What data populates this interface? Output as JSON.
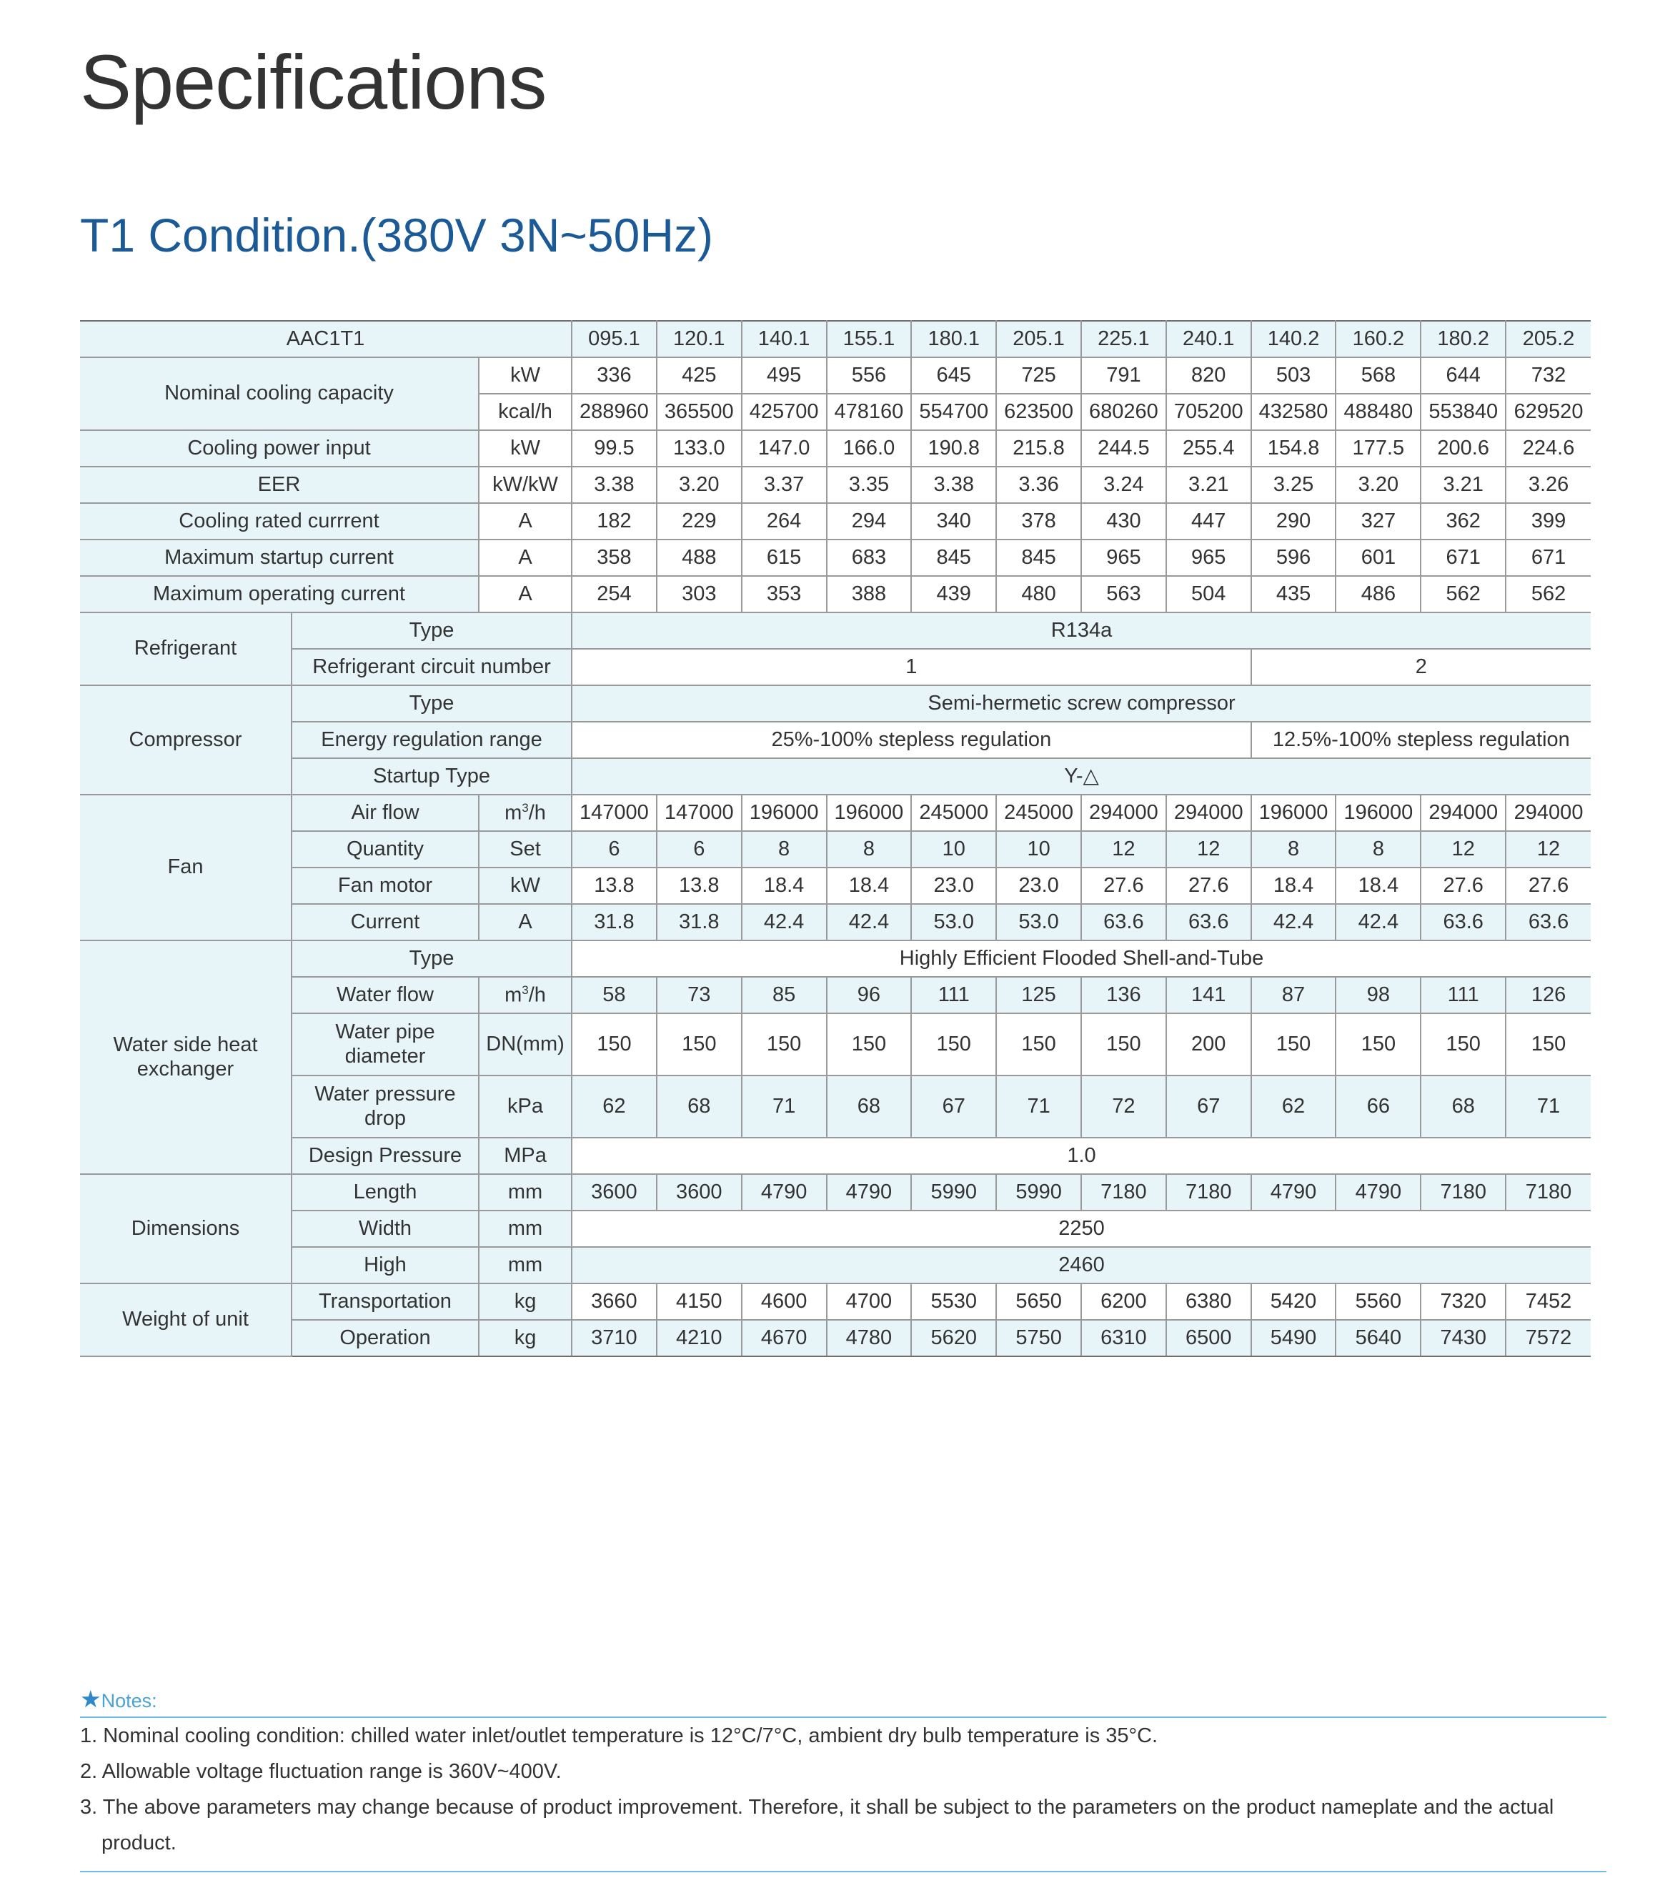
{
  "page": {
    "title": "Specifications",
    "subtitle": "T1 Condition.(380V 3N~50Hz)"
  },
  "table": {
    "header": {
      "label": "AAC1T1",
      "models": [
        "095.1",
        "120.1",
        "140.1",
        "155.1",
        "180.1",
        "205.1",
        "225.1",
        "240.1",
        "140.2",
        "160.2",
        "180.2",
        "205.2"
      ]
    },
    "nominal_cooling": {
      "label": "Nominal cooling capacity",
      "kw": {
        "unit": "kW",
        "values": [
          "336",
          "425",
          "495",
          "556",
          "645",
          "725",
          "791",
          "820",
          "503",
          "568",
          "644",
          "732"
        ]
      },
      "kcal": {
        "unit": "kcal/h",
        "values": [
          "288960",
          "365500",
          "425700",
          "478160",
          "554700",
          "623500",
          "680260",
          "705200",
          "432580",
          "488480",
          "553840",
          "629520"
        ]
      }
    },
    "power_input": {
      "label": "Cooling power input",
      "unit": "kW",
      "values": [
        "99.5",
        "133.0",
        "147.0",
        "166.0",
        "190.8",
        "215.8",
        "244.5",
        "255.4",
        "154.8",
        "177.5",
        "200.6",
        "224.6"
      ]
    },
    "eer": {
      "label": "EER",
      "unit": "kW/kW",
      "values": [
        "3.38",
        "3.20",
        "3.37",
        "3.35",
        "3.38",
        "3.36",
        "3.24",
        "3.21",
        "3.25",
        "3.20",
        "3.21",
        "3.26"
      ]
    },
    "rated_current": {
      "label": "Cooling rated currrent",
      "unit": "A",
      "values": [
        "182",
        "229",
        "264",
        "294",
        "340",
        "378",
        "430",
        "447",
        "290",
        "327",
        "362",
        "399"
      ]
    },
    "max_startup": {
      "label": "Maximum startup current",
      "unit": "A",
      "values": [
        "358",
        "488",
        "615",
        "683",
        "845",
        "845",
        "965",
        "965",
        "596",
        "601",
        "671",
        "671"
      ]
    },
    "max_operating": {
      "label": "Maximum operating current",
      "unit": "A",
      "values": [
        "254",
        "303",
        "353",
        "388",
        "439",
        "480",
        "563",
        "504",
        "435",
        "486",
        "562",
        "562"
      ]
    },
    "refrigerant": {
      "label": "Refrigerant",
      "type_label": "Type",
      "type_value": "R134a",
      "circuit_label": "Refrigerant circuit number",
      "circuit_a": "1",
      "circuit_b": "2"
    },
    "compressor": {
      "label": "Compressor",
      "type_label": "Type",
      "type_value": "Semi-hermetic screw compressor",
      "regulation_label": "Energy regulation range",
      "regulation_a": "25%-100% stepless regulation",
      "regulation_b": "12.5%-100% stepless regulation",
      "startup_label": "Startup Type",
      "startup_value": "Y-△"
    },
    "fan": {
      "label": "Fan",
      "air_flow": {
        "label": "Air flow",
        "unit_base": "m",
        "unit_sup": "3",
        "unit_tail": "/h",
        "values": [
          "147000",
          "147000",
          "196000",
          "196000",
          "245000",
          "245000",
          "294000",
          "294000",
          "196000",
          "196000",
          "294000",
          "294000"
        ]
      },
      "quantity": {
        "label": "Quantity",
        "unit": "Set",
        "values": [
          "6",
          "6",
          "8",
          "8",
          "10",
          "10",
          "12",
          "12",
          "8",
          "8",
          "12",
          "12"
        ]
      },
      "motor": {
        "label": "Fan motor",
        "unit": "kW",
        "values": [
          "13.8",
          "13.8",
          "18.4",
          "18.4",
          "23.0",
          "23.0",
          "27.6",
          "27.6",
          "18.4",
          "18.4",
          "27.6",
          "27.6"
        ]
      },
      "current": {
        "label": "Current",
        "unit": "A",
        "values": [
          "31.8",
          "31.8",
          "42.4",
          "42.4",
          "53.0",
          "53.0",
          "63.6",
          "63.6",
          "42.4",
          "42.4",
          "63.6",
          "63.6"
        ]
      }
    },
    "water_hx": {
      "label": "Water side heat exchanger",
      "type_label": "Type",
      "type_value": "Highly Efficient Flooded Shell-and-Tube",
      "water_flow": {
        "label": "Water flow",
        "unit_base": "m",
        "unit_sup": "3",
        "unit_tail": "/h",
        "values": [
          "58",
          "73",
          "85",
          "96",
          "111",
          "125",
          "136",
          "141",
          "87",
          "98",
          "111",
          "126"
        ]
      },
      "pipe_diameter": {
        "label": "Water pipe diameter",
        "unit": "DN(mm)",
        "values": [
          "150",
          "150",
          "150",
          "150",
          "150",
          "150",
          "150",
          "200",
          "150",
          "150",
          "150",
          "150"
        ]
      },
      "pressure_drop": {
        "label": "Water pressure drop",
        "unit": "kPa",
        "values": [
          "62",
          "68",
          "71",
          "68",
          "67",
          "71",
          "72",
          "67",
          "62",
          "66",
          "68",
          "71"
        ]
      },
      "design_pressure": {
        "label": "Design Pressure",
        "unit": "MPa",
        "value": "1.0"
      }
    },
    "dimensions": {
      "label": "Dimensions",
      "length": {
        "label": "Length",
        "unit": "mm",
        "values": [
          "3600",
          "3600",
          "4790",
          "4790",
          "5990",
          "5990",
          "7180",
          "7180",
          "4790",
          "4790",
          "7180",
          "7180"
        ]
      },
      "width": {
        "label": "Width",
        "unit": "mm",
        "value": "2250"
      },
      "high": {
        "label": "High",
        "unit": "mm",
        "value": "2460"
      }
    },
    "weight": {
      "label": "Weight of unit",
      "transportation": {
        "label": "Transportation",
        "unit": "kg",
        "values": [
          "3660",
          "4150",
          "4600",
          "4700",
          "5530",
          "5650",
          "6200",
          "6380",
          "5420",
          "5560",
          "7320",
          "7452"
        ]
      },
      "operation": {
        "label": "Operation",
        "unit": "kg",
        "values": [
          "3710",
          "4210",
          "4670",
          "4780",
          "5620",
          "5750",
          "6310",
          "6500",
          "5490",
          "5640",
          "7430",
          "7572"
        ]
      }
    }
  },
  "notes": {
    "star": "★",
    "heading": "Notes:",
    "items": [
      "1. Nominal cooling condition: chilled water inlet/outlet temperature is 12°C/7°C, ambient dry bulb temperature is 35°C.",
      "2. Allowable voltage fluctuation range is 360V~400V.",
      "3. The above parameters may change because of product improvement. Therefore, it shall be subject to the parameters on the product nameplate and the actual product."
    ],
    "star_icon": "star-icon",
    "accent_color": "#4aa3d6",
    "title_color": "#1b5a96",
    "row_shade": "#e8f5f8"
  }
}
